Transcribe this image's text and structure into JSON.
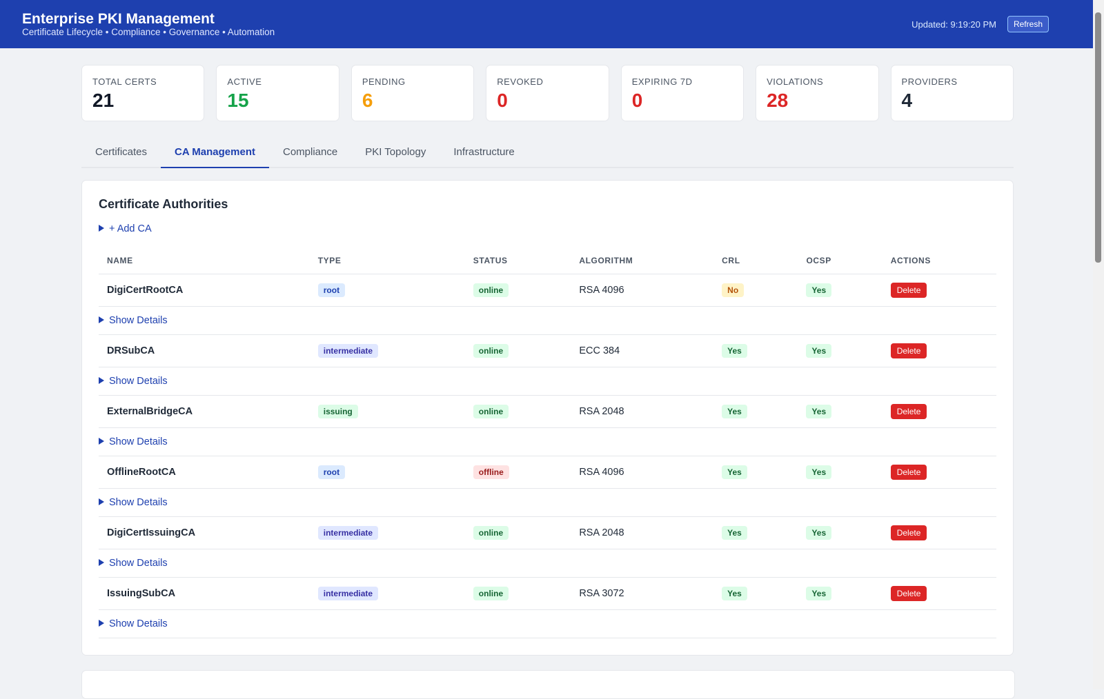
{
  "header": {
    "title": "Enterprise PKI Management",
    "subtitle": "Certificate Lifecycle • Compliance • Governance • Automation",
    "updated": "Updated: 9:19:20 PM",
    "refresh": "Refresh"
  },
  "stats": [
    {
      "label": "TOTAL CERTS",
      "value": 21,
      "color": "#111827"
    },
    {
      "label": "ACTIVE",
      "value": 15,
      "color": "#16a34a"
    },
    {
      "label": "PENDING",
      "value": 6,
      "color": "#f59e0b"
    },
    {
      "label": "REVOKED",
      "value": 0,
      "color": "#dc2626"
    },
    {
      "label": "EXPIRING 7D",
      "value": 0,
      "color": "#dc2626"
    },
    {
      "label": "VIOLATIONS",
      "value": 28,
      "color": "#dc2626"
    },
    {
      "label": "PROVIDERS",
      "value": 4,
      "color": "#1f2937"
    }
  ],
  "tabs": [
    "Certificates",
    "CA Management",
    "Compliance",
    "PKI Topology",
    "Infrastructure"
  ],
  "active_tab": 1,
  "panel": {
    "title": "Certificate Authorities",
    "add": "+ Add CA",
    "details": "Show Details"
  },
  "badge_styles": {
    "root": [
      "#dbeafe",
      "#1e40af"
    ],
    "intermediate": [
      "#e0e7ff",
      "#3730a3"
    ],
    "issuing": [
      "#dcfce7",
      "#166534"
    ],
    "online": [
      "#dcfce7",
      "#166534"
    ],
    "offline": [
      "#fee2e2",
      "#991b1b"
    ],
    "Yes": [
      "#dcfce7",
      "#166534"
    ],
    "No": [
      "#fef3c7",
      "#b45309"
    ]
  },
  "table": {
    "columns": [
      "NAME",
      "TYPE",
      "STATUS",
      "ALGORITHM",
      "CRL",
      "OCSP",
      "ACTIONS"
    ],
    "rows": [
      [
        "DigiCertRootCA",
        "root",
        "online",
        "RSA 4096",
        "No",
        "Yes",
        "Delete"
      ],
      [
        "DRSubCA",
        "intermediate",
        "online",
        "ECC 384",
        "Yes",
        "Yes",
        "Delete"
      ],
      [
        "ExternalBridgeCA",
        "issuing",
        "online",
        "RSA 2048",
        "Yes",
        "Yes",
        "Delete"
      ],
      [
        "OfflineRootCA",
        "root",
        "offline",
        "RSA 4096",
        "Yes",
        "Yes",
        "Delete"
      ],
      [
        "DigiCertIssuingCA",
        "intermediate",
        "online",
        "RSA 2048",
        "Yes",
        "Yes",
        "Delete"
      ],
      [
        "IssuingSubCA",
        "intermediate",
        "online",
        "RSA 3072",
        "Yes",
        "Yes",
        "Delete"
      ]
    ]
  }
}
